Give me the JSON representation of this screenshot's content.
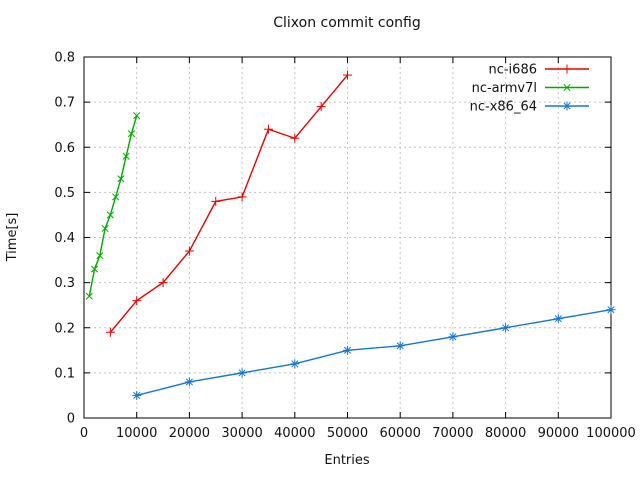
{
  "window": {
    "background": "#ffffff"
  },
  "chart_data": {
    "type": "line",
    "title": "Clixon commit config",
    "xlabel": "Entries",
    "ylabel": "Time[s]",
    "xlim": [
      0,
      100000
    ],
    "ylim": [
      0,
      0.8
    ],
    "grid": true,
    "grid_color": "#c4c4c4",
    "frame_color": "#000000",
    "legend_position": "top-right-inside",
    "x_ticks": {
      "values": [
        0,
        10000,
        20000,
        30000,
        40000,
        50000,
        60000,
        70000,
        80000,
        90000,
        100000
      ],
      "labels": [
        "0",
        "10000",
        "20000",
        "30000",
        "40000",
        "50000",
        "60000",
        "70000",
        "80000",
        "90000",
        "100000"
      ]
    },
    "y_ticks": {
      "values": [
        0,
        0.1,
        0.2,
        0.3,
        0.4,
        0.5,
        0.6,
        0.7,
        0.8
      ],
      "labels": [
        "0",
        "0.1",
        "0.2",
        "0.3",
        "0.4",
        "0.5",
        "0.6",
        "0.7",
        "0.8"
      ]
    },
    "series": [
      {
        "name": "nc-i686",
        "color": "#ee0000",
        "marker": "plus",
        "x": [
          5000,
          10000,
          15000,
          20000,
          25000,
          30000,
          35000,
          40000,
          45000,
          50000
        ],
        "y": [
          0.19,
          0.26,
          0.3,
          0.37,
          0.48,
          0.49,
          0.64,
          0.62,
          0.69,
          0.76
        ]
      },
      {
        "name": "nc-armv7l",
        "color": "#00ab00",
        "marker": "cross",
        "x": [
          1000,
          2000,
          3000,
          4000,
          5000,
          6000,
          7000,
          8000,
          9000,
          10000
        ],
        "y": [
          0.27,
          0.33,
          0.36,
          0.42,
          0.45,
          0.49,
          0.53,
          0.58,
          0.63,
          0.67
        ]
      },
      {
        "name": "nc-x86_64",
        "color": "#1576d8",
        "marker": "asterisk",
        "x": [
          10000,
          20000,
          30000,
          40000,
          50000,
          60000,
          70000,
          80000,
          90000,
          100000
        ],
        "y": [
          0.05,
          0.08,
          0.1,
          0.12,
          0.15,
          0.16,
          0.18,
          0.2,
          0.22,
          0.24
        ]
      }
    ]
  }
}
